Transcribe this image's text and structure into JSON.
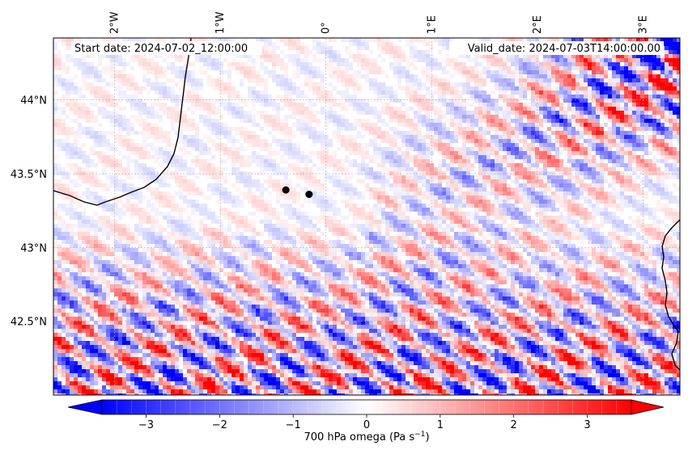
{
  "map": {
    "start_date_text": "Start date: 2024-07-02_12:00:00",
    "valid_date_text": "Valid_date: 2024-07-03T14:00:00.00",
    "lon_ticks": [
      {
        "value": -2,
        "label": "2°W"
      },
      {
        "value": -1,
        "label": "1°W"
      },
      {
        "value": 0,
        "label": "0°"
      },
      {
        "value": 1,
        "label": "1°E"
      },
      {
        "value": 2,
        "label": "2°E"
      },
      {
        "value": 3,
        "label": "3°E"
      }
    ],
    "lat_ticks": [
      {
        "value": 44.0,
        "label": "44°N"
      },
      {
        "value": 43.5,
        "label": "43.5°N"
      },
      {
        "value": 43.0,
        "label": "43°N"
      },
      {
        "value": 42.5,
        "label": "42.5°N"
      }
    ],
    "extent": {
      "lon_min": -2.58,
      "lon_max": 3.35,
      "lat_min": 42.0,
      "lat_max": 44.42
    },
    "gridlines": true,
    "markers": [
      {
        "lon": -0.38,
        "lat": 43.39
      },
      {
        "lon": -0.16,
        "lat": 43.36
      }
    ],
    "colors": {
      "negative": "#0000ff",
      "neutral": "#ffffff",
      "positive": "#ff0000",
      "coast": "#000000",
      "marker": "#000000"
    }
  },
  "colorbar": {
    "label": "700 hPa omega (Pa s",
    "label_sup": "−1",
    "label_close": ")",
    "vmin": -3.6,
    "vmax": 3.6,
    "extend": "both",
    "ticks": [
      {
        "value": -3,
        "label": "−3"
      },
      {
        "value": -2,
        "label": "−2"
      },
      {
        "value": -1,
        "label": "−1"
      },
      {
        "value": 0,
        "label": "0"
      },
      {
        "value": 1,
        "label": "1"
      },
      {
        "value": 2,
        "label": "2"
      },
      {
        "value": 3,
        "label": "3"
      }
    ]
  }
}
